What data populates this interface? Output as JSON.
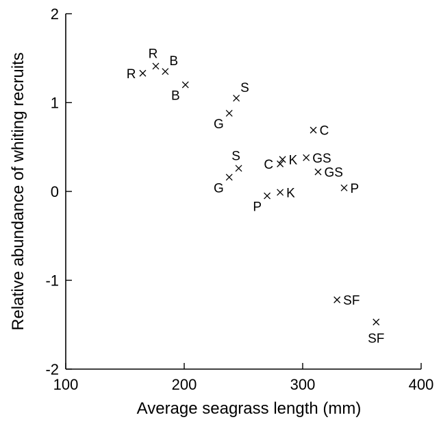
{
  "chart_data": {
    "type": "scatter",
    "title": "",
    "xlabel": "Average seagrass length (mm)",
    "ylabel": "Relative abundance of whiting recruits",
    "xlim": [
      100,
      400
    ],
    "ylim": [
      -2,
      2
    ],
    "xticks": [
      100,
      200,
      300,
      400
    ],
    "yticks": [
      -2,
      -1,
      0,
      1,
      2
    ],
    "grid": false,
    "marker": "x",
    "points": [
      {
        "x": 165,
        "y": 1.33,
        "label": "R",
        "label_pos": "left"
      },
      {
        "x": 176,
        "y": 1.41,
        "label": "R",
        "label_pos": "above"
      },
      {
        "x": 184,
        "y": 1.35,
        "label": "B",
        "label_pos": "above-right"
      },
      {
        "x": 201,
        "y": 1.2,
        "label": "B",
        "label_pos": "below-left"
      },
      {
        "x": 238,
        "y": 0.88,
        "label": "G",
        "label_pos": "below-left"
      },
      {
        "x": 244,
        "y": 1.05,
        "label": "S",
        "label_pos": "above-right"
      },
      {
        "x": 238,
        "y": 0.16,
        "label": "G",
        "label_pos": "below-left"
      },
      {
        "x": 246,
        "y": 0.26,
        "label": "S",
        "label_pos": "above"
      },
      {
        "x": 281,
        "y": 0.31,
        "label": "C",
        "label_pos": "left"
      },
      {
        "x": 283,
        "y": 0.36,
        "label": "K",
        "label_pos": "right"
      },
      {
        "x": 270,
        "y": -0.05,
        "label": "P",
        "label_pos": "below-left"
      },
      {
        "x": 281,
        "y": -0.01,
        "label": "K",
        "label_pos": "right"
      },
      {
        "x": 309,
        "y": 0.69,
        "label": "C",
        "label_pos": "right"
      },
      {
        "x": 303,
        "y": 0.38,
        "label": "GS",
        "label_pos": "right"
      },
      {
        "x": 313,
        "y": 0.22,
        "label": "GS",
        "label_pos": "right"
      },
      {
        "x": 335,
        "y": 0.04,
        "label": "P",
        "label_pos": "right"
      },
      {
        "x": 329,
        "y": -1.22,
        "label": "SF",
        "label_pos": "right"
      },
      {
        "x": 362,
        "y": -1.47,
        "label": "SF",
        "label_pos": "below"
      }
    ]
  }
}
